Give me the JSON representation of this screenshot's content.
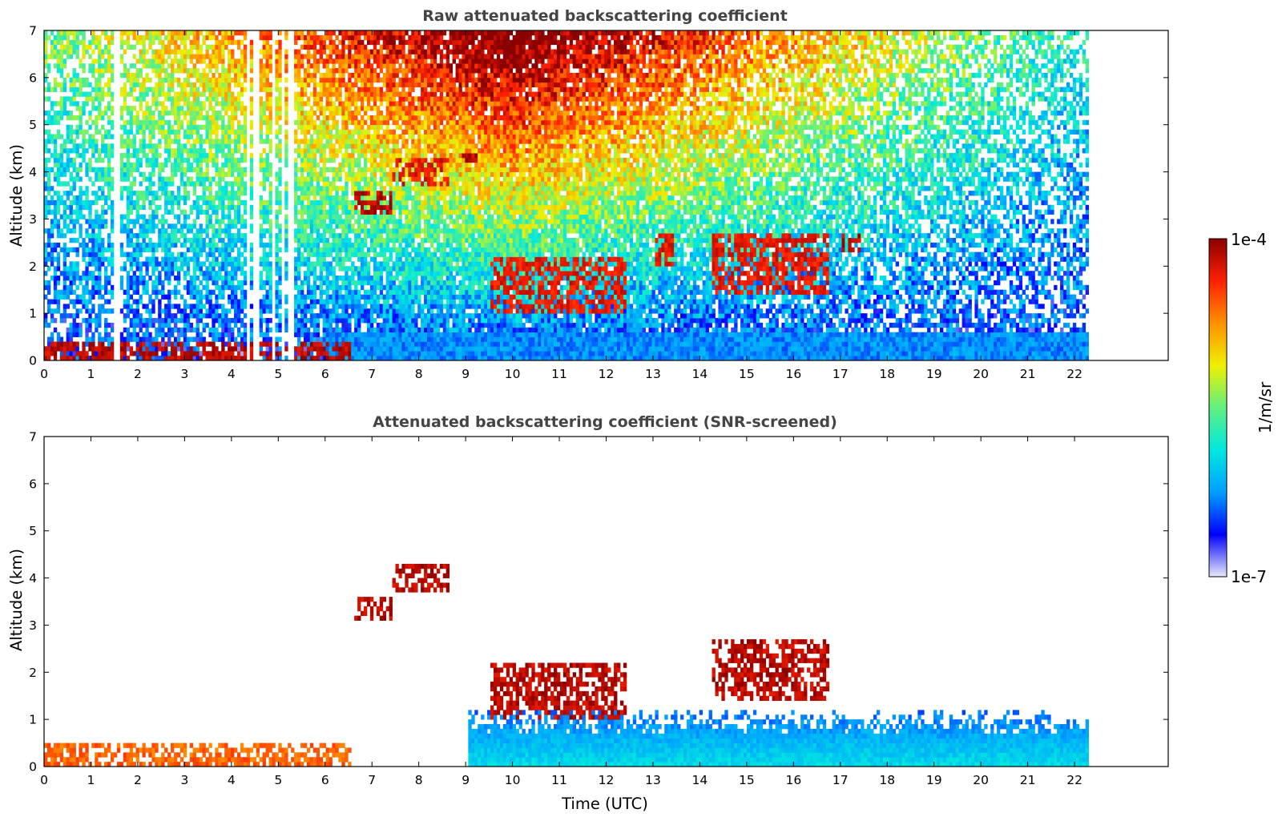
{
  "chart_data": [
    {
      "type": "heatmap",
      "title": "Raw attenuated backscattering coefficient",
      "xlabel": "",
      "ylabel": "Altitude (km)",
      "xlim": [
        0,
        24
      ],
      "ylim": [
        0,
        7
      ],
      "x_ticks": [
        "0",
        "1",
        "2",
        "3",
        "4",
        "5",
        "6",
        "7",
        "8",
        "9",
        "10",
        "11",
        "12",
        "13",
        "14",
        "15",
        "16",
        "17",
        "18",
        "19",
        "20",
        "21",
        "22"
      ],
      "y_ticks": [
        "0",
        "1",
        "2",
        "3",
        "4",
        "5",
        "6",
        "7"
      ],
      "data_time_range": [
        0,
        22.3
      ],
      "data_gaps_utc": [
        [
          1.42,
          1.58
        ],
        [
          4.27,
          4.35
        ],
        [
          4.45,
          4.58
        ],
        [
          4.82,
          4.92
        ],
        [
          5.05,
          5.13
        ],
        [
          5.2,
          5.3
        ]
      ],
      "features": [
        {
          "name": "aerosol boundary layer",
          "time": [
            0,
            6.5
          ],
          "altitude": [
            0,
            0.35
          ],
          "level": 1.0
        },
        {
          "name": "cloud",
          "time": [
            6.6,
            7.4
          ],
          "altitude": [
            3.05,
            3.5
          ],
          "level": 1.0
        },
        {
          "name": "cloud",
          "time": [
            7.4,
            8.6
          ],
          "altitude": [
            3.7,
            4.2
          ],
          "level": 0.95
        },
        {
          "name": "cloud",
          "time": [
            8.9,
            9.2
          ],
          "altitude": [
            4.2,
            4.45
          ],
          "level": 1.0
        },
        {
          "name": "cloud",
          "time": [
            9.5,
            12.4
          ],
          "altitude": [
            1.0,
            2.1
          ],
          "level": 0.95
        },
        {
          "name": "cloud",
          "time": [
            13.0,
            13.4
          ],
          "altitude": [
            2.0,
            2.6
          ],
          "level": 0.95
        },
        {
          "name": "cloud",
          "time": [
            14.2,
            16.7
          ],
          "altitude": [
            1.4,
            2.6
          ],
          "level": 0.95
        },
        {
          "name": "cloud",
          "time": [
            17.0,
            17.4
          ],
          "altitude": [
            2.3,
            2.6
          ],
          "level": 1.0
        }
      ]
    },
    {
      "type": "heatmap",
      "title": "Attenuated backscattering coefficient (SNR-screened)",
      "xlabel": "Time (UTC)",
      "ylabel": "Altitude (km)",
      "xlim": [
        0,
        24
      ],
      "ylim": [
        0,
        7
      ],
      "x_ticks": [
        "0",
        "1",
        "2",
        "3",
        "4",
        "5",
        "6",
        "7",
        "8",
        "9",
        "10",
        "11",
        "12",
        "13",
        "14",
        "15",
        "16",
        "17",
        "18",
        "19",
        "20",
        "21",
        "22"
      ],
      "y_ticks": [
        "0",
        "1",
        "2",
        "3",
        "4",
        "5",
        "6",
        "7"
      ],
      "data_time_range": [
        0,
        22.3
      ],
      "features": [
        {
          "name": "boundary layer",
          "time": [
            0,
            6.5
          ],
          "altitude": [
            0,
            0.45
          ],
          "level": 0.85
        },
        {
          "name": "cloud",
          "time": [
            6.6,
            7.4
          ],
          "altitude": [
            3.05,
            3.5
          ],
          "level": 1.0
        },
        {
          "name": "cloud",
          "time": [
            7.4,
            8.6
          ],
          "altitude": [
            3.7,
            4.2
          ],
          "level": 1.0
        },
        {
          "name": "cloud",
          "time": [
            9.5,
            12.4
          ],
          "altitude": [
            1.0,
            2.1
          ],
          "level": 1.0
        },
        {
          "name": "cloud",
          "time": [
            14.2,
            16.7
          ],
          "altitude": [
            1.4,
            2.6
          ],
          "level": 1.0
        },
        {
          "name": "low-level signal",
          "time": [
            9.0,
            22.3
          ],
          "altitude": [
            0,
            1.2
          ],
          "level": 0.35
        }
      ]
    }
  ],
  "colorbar": {
    "label": "1/m/sr",
    "max_label": "1e-4",
    "min_label": "1e-7",
    "colormap": [
      "#e8e8f8",
      "#0000ff",
      "#00a0ff",
      "#00e8e0",
      "#60f080",
      "#f0f000",
      "#ff9000",
      "#ff2000",
      "#8b0000"
    ]
  }
}
